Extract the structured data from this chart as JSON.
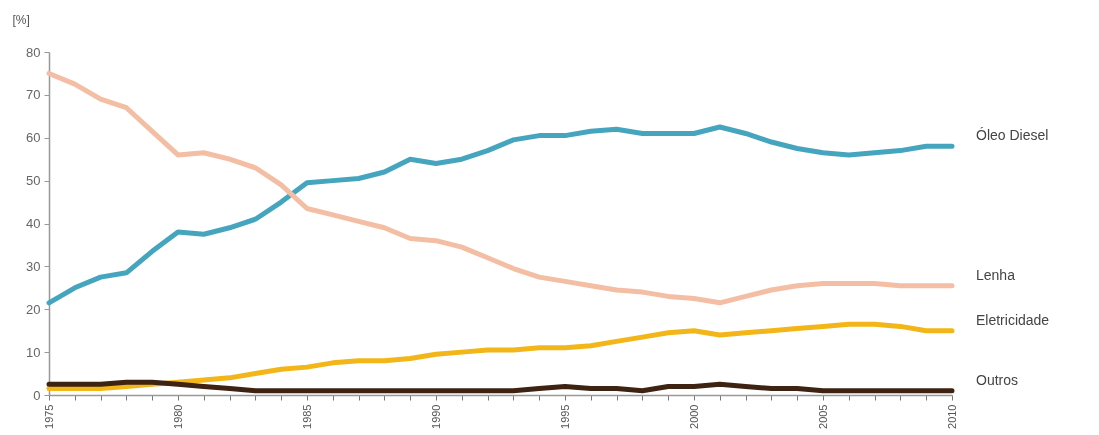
{
  "chart_data": {
    "type": "line",
    "ylabel": "[%]",
    "x": [
      1975,
      1976,
      1977,
      1978,
      1979,
      1980,
      1981,
      1982,
      1983,
      1984,
      1985,
      1986,
      1987,
      1988,
      1989,
      1990,
      1991,
      1992,
      1993,
      1994,
      1995,
      1996,
      1997,
      1998,
      1999,
      2000,
      2001,
      2002,
      2003,
      2004,
      2005,
      2006,
      2007,
      2008,
      2009,
      2010
    ],
    "xlim": [
      1975,
      2010
    ],
    "xticks": [
      1975,
      {
        "value": 1976,
        "label": null
      },
      {
        "value": 1977,
        "label": null
      },
      {
        "value": 1978,
        "label": null
      },
      {
        "value": 1979,
        "label": null
      },
      1980,
      {
        "value": 1981,
        "label": null
      },
      {
        "value": 1982,
        "label": null
      },
      {
        "value": 1983,
        "label": null
      },
      {
        "value": 1984,
        "label": null
      },
      1985,
      {
        "value": 1986,
        "label": null
      },
      {
        "value": 1987,
        "label": null
      },
      {
        "value": 1988,
        "label": null
      },
      {
        "value": 1989,
        "label": null
      },
      1990,
      {
        "value": 1991,
        "label": null
      },
      {
        "value": 1992,
        "label": null
      },
      {
        "value": 1993,
        "label": null
      },
      {
        "value": 1994,
        "label": null
      },
      1995,
      {
        "value": 1996,
        "label": null
      },
      {
        "value": 1997,
        "label": null
      },
      {
        "value": 1998,
        "label": null
      },
      {
        "value": 1999,
        "label": null
      },
      2000,
      {
        "value": 2001,
        "label": null
      },
      {
        "value": 2002,
        "label": null
      },
      {
        "value": 2003,
        "label": null
      },
      {
        "value": 2004,
        "label": null
      },
      2005,
      {
        "value": 2006,
        "label": null
      },
      {
        "value": 2007,
        "label": null
      },
      {
        "value": 2008,
        "label": null
      },
      {
        "value": 2009,
        "label": null
      },
      2010
    ],
    "ylim": [
      0,
      80
    ],
    "yticks": [
      0,
      10,
      20,
      30,
      40,
      50,
      60,
      70,
      80
    ],
    "series": [
      {
        "name": "Óleo Diesel",
        "color": "#45a5bf",
        "values": [
          21.5,
          25,
          27.5,
          28.5,
          33.5,
          38,
          37.5,
          39,
          41,
          45,
          49.5,
          50,
          50.5,
          52,
          55,
          54,
          55,
          57,
          59.5,
          60.5,
          60.5,
          61.5,
          62,
          61,
          61,
          61,
          62.5,
          61,
          59,
          57.5,
          56.5,
          56,
          56.5,
          57,
          58,
          58
        ]
      },
      {
        "name": "Lenha",
        "color": "#f3bea3",
        "values": [
          75,
          72.5,
          69,
          67,
          61.5,
          56,
          56.5,
          55,
          53,
          49,
          43.5,
          42,
          40.5,
          39,
          36.5,
          36,
          34.5,
          32,
          29.5,
          27.5,
          26.5,
          25.5,
          24.5,
          24,
          23,
          22.5,
          21.5,
          23,
          24.5,
          25.5,
          26,
          26,
          26,
          25.5,
          25.5,
          25.5
        ]
      },
      {
        "name": "Eletricidade",
        "color": "#f2b619",
        "values": [
          1.5,
          1.5,
          1.5,
          2,
          2.5,
          3,
          3.5,
          4,
          5,
          6,
          6.5,
          7.5,
          8,
          8,
          8.5,
          9.5,
          10,
          10.5,
          10.5,
          11,
          11,
          11.5,
          12.5,
          13.5,
          14.5,
          15,
          14,
          14.5,
          15,
          15.5,
          16,
          16.5,
          16.5,
          16,
          15,
          15
        ]
      },
      {
        "name": "Outros",
        "color": "#3e2212",
        "values": [
          2.5,
          2.5,
          2.5,
          3,
          3,
          2.5,
          2,
          1.5,
          1,
          1,
          1,
          1,
          1,
          1,
          1,
          1,
          1,
          1,
          1,
          1.5,
          2,
          1.5,
          1.5,
          1,
          2,
          2,
          2.5,
          2,
          1.5,
          1.5,
          1,
          1,
          1,
          1,
          1,
          1
        ]
      }
    ]
  }
}
